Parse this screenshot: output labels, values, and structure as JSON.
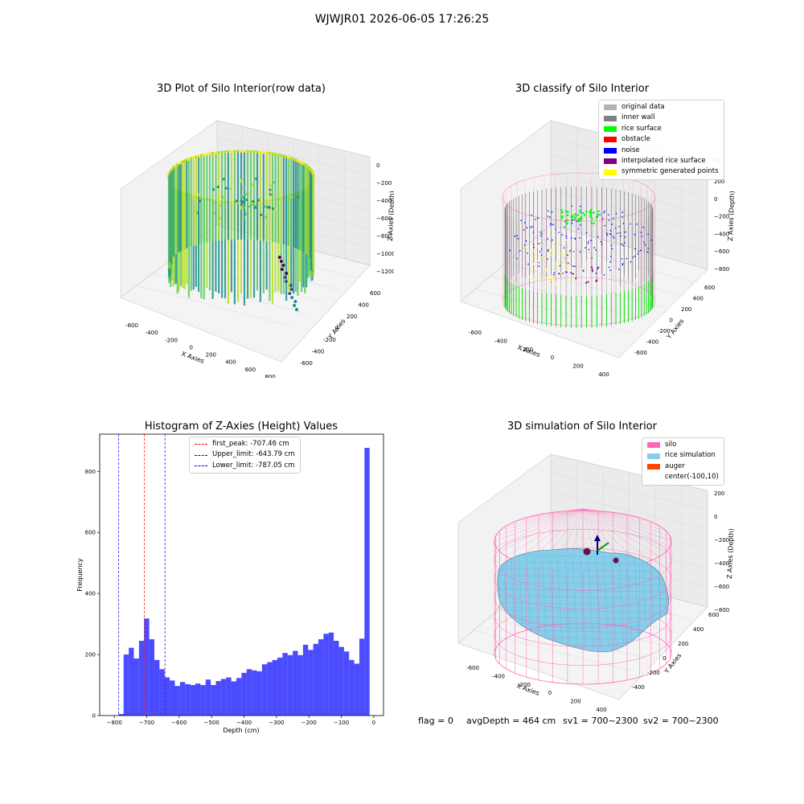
{
  "figure_title": "WJWJR01 2026-06-05 17:26:25",
  "panels": {
    "raw": {
      "title": "3D Plot of Silo Interior(row data)",
      "x_ticks": [
        "-600",
        "-400",
        "-200",
        "0",
        "200",
        "400",
        "600",
        "800"
      ],
      "y_ticks": [
        "-600",
        "-400",
        "-200",
        "0",
        "200",
        "400",
        "600"
      ],
      "z_ticks": [
        "0",
        "−200",
        "−400",
        "−600",
        "−800",
        "−1000",
        "−1200"
      ],
      "xlabel": "X Axies",
      "ylabel": "Y Axies",
      "zlabel": "Z Axies (Depth)"
    },
    "classify": {
      "title": "3D classify of Silo Interior",
      "legend": [
        {
          "label": "original data",
          "color": "#b3b3b3"
        },
        {
          "label": "inner wall",
          "color": "#808080"
        },
        {
          "label": "rice surface",
          "color": "#00ff00"
        },
        {
          "label": "obstacle",
          "color": "#ff0000"
        },
        {
          "label": "noise",
          "color": "#0000ff"
        },
        {
          "label": "interpolated rice surface",
          "color": "#800080"
        },
        {
          "label": "symmetric generated points",
          "color": "#ffff00"
        }
      ],
      "x_ticks": [
        "-600",
        "-400",
        "-200",
        "0",
        "200",
        "400"
      ],
      "y_ticks": [
        "-600",
        "-400",
        "-200",
        "0",
        "200",
        "400",
        "600"
      ],
      "z_ticks": [
        "200",
        "0",
        "−200",
        "−400",
        "−600",
        "−800"
      ],
      "z_top_tick": "00",
      "xlabel": "X Axies",
      "ylabel": "Y Axies",
      "zlabel": "Z Axies (Depth)"
    },
    "simulation": {
      "title": "3D simulation of Silo Interior",
      "legend": [
        {
          "label": "silo",
          "color": "#ff69b4"
        },
        {
          "label": "rice simulation",
          "color": "#87ceeb"
        },
        {
          "label": "auger",
          "color": "#ff4500"
        },
        {
          "label": "center(-100,10)",
          "color": ""
        }
      ],
      "x_ticks": [
        "-600",
        "-400",
        "-200",
        "0",
        "200",
        "400"
      ],
      "y_ticks": [
        "-400",
        "-200",
        "0",
        "200",
        "400",
        "600"
      ],
      "z_ticks": [
        "200",
        "0",
        "−200",
        "−400",
        "−600",
        "−800"
      ],
      "xlabel": "X Axies",
      "ylabel": "Y Axies",
      "zlabel": "Z Axies (Depth)"
    }
  },
  "status_line": {
    "flag": "flag = 0",
    "avg_depth": "avgDepth = 464 cm",
    "sv1": "sv1 = 700~2300",
    "sv2": "sv2 = 700~2300"
  },
  "chart_data": {
    "type": "bar",
    "title": "Histogram of Z-Axies (Height) Values",
    "xlabel": "Depth (cm)",
    "ylabel": "Frequency",
    "xlim": [
      -845,
      30
    ],
    "ylim": [
      0,
      922
    ],
    "x_ticks": [
      "−800",
      "−700",
      "−600",
      "−500",
      "−400",
      "−300",
      "−200",
      "−100",
      "0"
    ],
    "y_ticks": [
      "0",
      "200",
      "400",
      "600",
      "800"
    ],
    "bar_color": "#0000ff",
    "bin_width": 15.8,
    "bin_start": -787.05,
    "values": [
      5,
      200,
      222,
      187,
      245,
      318,
      250,
      182,
      152,
      125,
      115,
      97,
      110,
      103,
      100,
      105,
      100,
      118,
      100,
      113,
      120,
      125,
      112,
      123,
      140,
      152,
      148,
      145,
      168,
      175,
      182,
      190,
      205,
      198,
      212,
      198,
      232,
      215,
      235,
      250,
      268,
      272,
      245,
      225,
      210,
      182,
      170,
      252,
      877
    ],
    "lines": [
      {
        "label": "first_peak: -707.46 cm",
        "x": -707.46,
        "color": "#ff0000"
      },
      {
        "label": "Upper_limit: -643.79 cm",
        "x": -643.79,
        "color": "#0000ff"
      },
      {
        "label": "Lower_limit: -787.05 cm",
        "x": -787.05,
        "color": "#0000ff"
      }
    ],
    "legend_position": "top-center"
  }
}
